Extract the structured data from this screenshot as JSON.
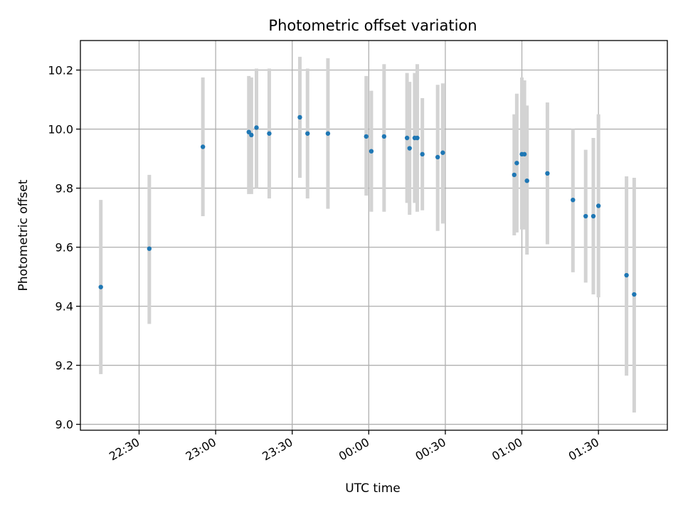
{
  "chart_data": {
    "type": "scatter",
    "title": "Photometric offset variation",
    "xlabel": "UTC time",
    "ylabel": "Photometric offset",
    "x_ticks": [
      {
        "label": "22:30",
        "time": "22:30"
      },
      {
        "label": "23:00",
        "time": "23:00"
      },
      {
        "label": "23:30",
        "time": "23:30"
      },
      {
        "label": "00:00",
        "time": "00:00"
      },
      {
        "label": "00:30",
        "time": "00:30"
      },
      {
        "label": "01:00",
        "time": "01:00"
      },
      {
        "label": "01:30",
        "time": "01:30"
      }
    ],
    "y_ticks": [
      "9.0",
      "9.2",
      "9.4",
      "9.6",
      "9.8",
      "10.0",
      "10.2"
    ],
    "xlim": [
      "22:07",
      "01:57"
    ],
    "ylim": [
      8.98,
      10.3
    ],
    "grid": true,
    "series": [
      {
        "errorbars": true,
        "color": "#1f77b4",
        "errorbar_color": "#d3d3d3",
        "points": [
          {
            "t": "22:15",
            "y": 9.465,
            "lo": 9.17,
            "hi": 9.76
          },
          {
            "t": "22:34",
            "y": 9.595,
            "lo": 9.34,
            "hi": 9.845
          },
          {
            "t": "22:55",
            "y": 9.94,
            "lo": 9.705,
            "hi": 10.175
          },
          {
            "t": "23:13",
            "y": 9.99,
            "lo": 9.78,
            "hi": 10.18
          },
          {
            "t": "23:14",
            "y": 9.98,
            "lo": 9.78,
            "hi": 10.175
          },
          {
            "t": "23:16",
            "y": 10.005,
            "lo": 9.8,
            "hi": 10.205
          },
          {
            "t": "23:21",
            "y": 9.985,
            "lo": 9.765,
            "hi": 10.205
          },
          {
            "t": "23:33",
            "y": 10.04,
            "lo": 9.835,
            "hi": 10.245
          },
          {
            "t": "23:36",
            "y": 9.985,
            "lo": 9.765,
            "hi": 10.205
          },
          {
            "t": "23:44",
            "y": 9.985,
            "lo": 9.73,
            "hi": 10.24
          },
          {
            "t": "23:59",
            "y": 9.975,
            "lo": 9.775,
            "hi": 10.18
          },
          {
            "t": "00:01",
            "y": 9.925,
            "lo": 9.72,
            "hi": 10.13
          },
          {
            "t": "00:06",
            "y": 9.975,
            "lo": 9.72,
            "hi": 10.22
          },
          {
            "t": "00:15",
            "y": 9.97,
            "lo": 9.75,
            "hi": 10.19
          },
          {
            "t": "00:16",
            "y": 9.935,
            "lo": 9.71,
            "hi": 10.16
          },
          {
            "t": "00:18",
            "y": 9.97,
            "lo": 9.75,
            "hi": 10.19
          },
          {
            "t": "00:19",
            "y": 9.97,
            "lo": 9.72,
            "hi": 10.22
          },
          {
            "t": "00:21",
            "y": 9.915,
            "lo": 9.725,
            "hi": 10.105
          },
          {
            "t": "00:27",
            "y": 9.905,
            "lo": 9.655,
            "hi": 10.15
          },
          {
            "t": "00:29",
            "y": 9.92,
            "lo": 9.68,
            "hi": 10.155
          },
          {
            "t": "00:57",
            "y": 9.845,
            "lo": 9.64,
            "hi": 10.05
          },
          {
            "t": "00:58",
            "y": 9.885,
            "lo": 9.65,
            "hi": 10.12
          },
          {
            "t": "01:00",
            "y": 9.915,
            "lo": 9.66,
            "hi": 10.175
          },
          {
            "t": "01:01",
            "y": 9.915,
            "lo": 9.66,
            "hi": 10.165
          },
          {
            "t": "01:02",
            "y": 9.825,
            "lo": 9.575,
            "hi": 10.08
          },
          {
            "t": "01:10",
            "y": 9.85,
            "lo": 9.61,
            "hi": 10.09
          },
          {
            "t": "01:20",
            "y": 9.76,
            "lo": 9.515,
            "hi": 10.0
          },
          {
            "t": "01:25",
            "y": 9.705,
            "lo": 9.48,
            "hi": 9.93
          },
          {
            "t": "01:28",
            "y": 9.705,
            "lo": 9.44,
            "hi": 9.97
          },
          {
            "t": "01:30",
            "y": 9.74,
            "lo": 9.43,
            "hi": 10.05
          },
          {
            "t": "01:41",
            "y": 9.505,
            "lo": 9.165,
            "hi": 9.84
          },
          {
            "t": "01:44",
            "y": 9.44,
            "lo": 9.04,
            "hi": 9.835
          }
        ]
      }
    ]
  }
}
